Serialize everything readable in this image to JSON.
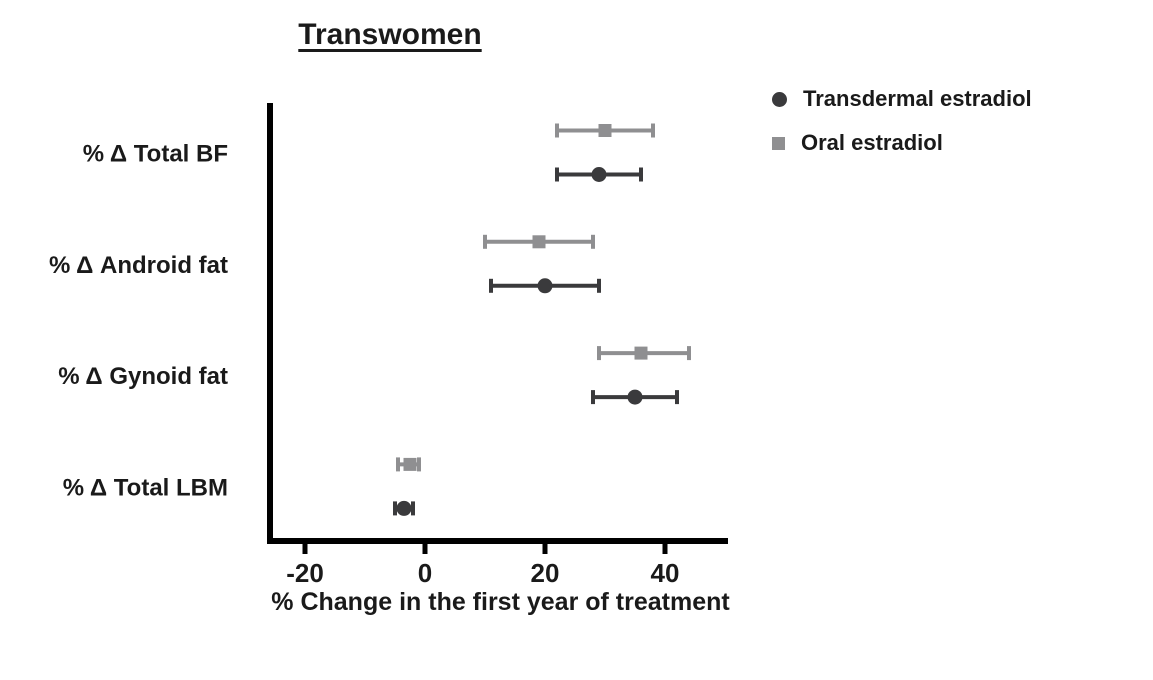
{
  "title": "Transwomen",
  "legend": {
    "items": [
      {
        "label": "Transdermal estradiol",
        "marker": "circle",
        "color": "#3a3a3c"
      },
      {
        "label": "Oral estradiol",
        "marker": "square",
        "color": "#8f8f91"
      }
    ]
  },
  "chart_data": {
    "type": "scatter",
    "subtype": "horizontal-dot-plot-with-error-bars",
    "title": "Transwomen",
    "xlabel": "% Change in the first year of treatment",
    "categories": [
      "% Δ Total BF",
      "% Δ Android fat",
      "% Δ Gynoid fat",
      "% Δ Total LBM"
    ],
    "xticks": [
      -20,
      0,
      20,
      40
    ],
    "xlim": [
      -26,
      51
    ],
    "grid": false,
    "legend_position": "top-right",
    "axis_color": "#000000",
    "series": [
      {
        "name": "Oral estradiol",
        "marker": "square",
        "color": "#8f8f91",
        "values": [
          30,
          19,
          36,
          -2.5
        ],
        "ci_low": [
          22,
          10,
          29,
          -4.5
        ],
        "ci_high": [
          38,
          28,
          44,
          -1
        ]
      },
      {
        "name": "Transdermal estradiol",
        "marker": "circle",
        "color": "#3a3a3c",
        "values": [
          29,
          20,
          35,
          -3.5
        ],
        "ci_low": [
          22,
          11,
          28,
          -5
        ],
        "ci_high": [
          36,
          29,
          42,
          -2
        ]
      }
    ]
  }
}
